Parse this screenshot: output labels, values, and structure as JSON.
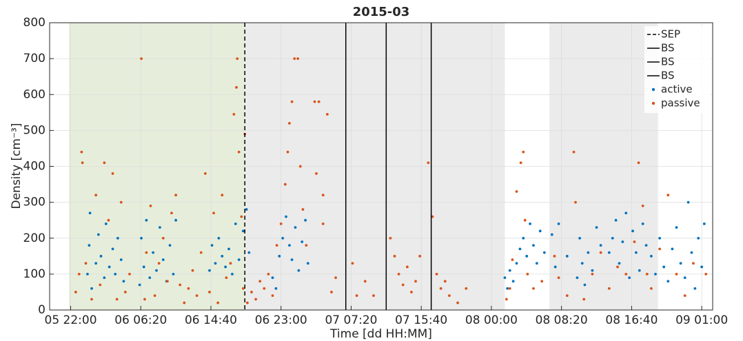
{
  "chart_data": {
    "type": "scatter",
    "title": "2015-03",
    "x_label": "Time [dd HH:MM]",
    "y_label": "Density [cm⁻³]",
    "xlim": [
      19.5,
      98.3
    ],
    "ylim": [
      0,
      800
    ],
    "xticks": [
      {
        "value": 22,
        "label": "05 22:00"
      },
      {
        "value": 30.333,
        "label": "06 06:20"
      },
      {
        "value": 38.667,
        "label": "06 14:40"
      },
      {
        "value": 47,
        "label": "06 23:00"
      },
      {
        "value": 55.333,
        "label": "07 07:20"
      },
      {
        "value": 63.667,
        "label": "07 15:40"
      },
      {
        "value": 72,
        "label": "08 00:00"
      },
      {
        "value": 80.333,
        "label": "08 08:20"
      },
      {
        "value": 88.667,
        "label": "08 16:40"
      },
      {
        "value": 97,
        "label": "09 01:00"
      }
    ],
    "yticks": [
      0,
      100,
      200,
      300,
      400,
      500,
      600,
      700,
      800
    ],
    "grid": true,
    "legend": "upper right",
    "regions": [
      {
        "x": [
          21.8,
          42.7
        ],
        "color": "#e6eedb"
      },
      {
        "x": [
          42.7,
          73.6
        ],
        "color": "#ebebeb"
      },
      {
        "x": [
          78.9,
          91.8
        ],
        "color": "#ebebeb"
      }
    ],
    "vlines": [
      {
        "name": "SEP",
        "x": 42.7,
        "style": "dashed"
      },
      {
        "name": "BS",
        "x": 54.7,
        "style": "solid"
      },
      {
        "name": "BS",
        "x": 59.5,
        "style": "solid"
      },
      {
        "name": "BS",
        "x": 64.85,
        "style": "solid"
      }
    ],
    "series": [
      {
        "name": "active",
        "color": "#0072bd",
        "x": [
          24.0,
          24.2,
          24.3,
          24.5,
          25,
          25.3,
          25.6,
          26,
          26.2,
          26.6,
          27,
          27.3,
          27.6,
          28,
          28.3,
          30.2,
          30.4,
          30.7,
          31,
          31.4,
          31.8,
          32.2,
          32.6,
          33,
          33.4,
          33.8,
          34.2,
          34.5,
          38.5,
          38.8,
          39.2,
          39.6,
          40,
          40.4,
          40.8,
          41.2,
          41.6,
          42,
          42.5,
          42.9,
          43.2,
          46,
          46.4,
          46.8,
          47.2,
          47.6,
          48,
          48.3,
          48.7,
          49.1,
          49.5,
          49.9,
          50.2,
          73.6,
          73.9,
          74.2,
          74.6,
          75,
          75.4,
          75.8,
          76.2,
          76.6,
          77,
          77.4,
          77.8,
          78.3,
          79.2,
          79.6,
          80,
          81,
          82.2,
          82.5,
          82.8,
          83.1,
          83.5,
          84,
          84.5,
          85,
          86,
          86.4,
          86.8,
          87.2,
          87.6,
          88,
          88.4,
          88.8,
          89.2,
          89.6,
          90,
          90.4,
          91,
          91.5,
          92,
          92.5,
          93,
          93.5,
          94,
          94.5,
          95,
          95.4,
          95.8,
          96.2,
          96.6,
          97,
          97.3
        ],
        "values": [
          100,
          180,
          270,
          60,
          130,
          210,
          150,
          90,
          240,
          120,
          170,
          100,
          200,
          140,
          80,
          70,
          200,
          120,
          250,
          90,
          160,
          110,
          230,
          140,
          80,
          180,
          100,
          250,
          110,
          180,
          130,
          200,
          150,
          120,
          170,
          100,
          240,
          140,
          220,
          280,
          160,
          90,
          60,
          150,
          200,
          260,
          180,
          140,
          230,
          110,
          190,
          250,
          130,
          90,
          60,
          110,
          80,
          130,
          170,
          200,
          150,
          240,
          180,
          130,
          220,
          160,
          210,
          120,
          240,
          150,
          90,
          200,
          130,
          70,
          160,
          110,
          230,
          180,
          160,
          200,
          250,
          130,
          190,
          270,
          90,
          220,
          160,
          110,
          240,
          180,
          150,
          100,
          200,
          120,
          80,
          170,
          230,
          130,
          90,
          300,
          160,
          60,
          200,
          120,
          240
        ]
      },
      {
        "name": "passive",
        "color": "#d95319",
        "x": [
          22.6,
          23,
          23.3,
          23.4,
          23.8,
          24.5,
          25,
          25.5,
          26,
          26.5,
          27,
          27.5,
          28,
          28.5,
          29,
          30.4,
          30.8,
          31,
          31.5,
          32,
          32.5,
          33,
          33.5,
          34,
          34.5,
          35,
          35.5,
          36,
          36.5,
          37,
          37.5,
          38,
          38.5,
          39,
          39.5,
          40,
          40.5,
          41,
          41.4,
          41.7,
          41.8,
          42,
          42.3,
          42.5,
          42.7,
          43,
          43.5,
          44,
          44.5,
          45,
          45.5,
          46,
          46.5,
          47,
          47.5,
          47.8,
          48,
          48.3,
          48.6,
          49,
          49.3,
          49.6,
          50,
          51,
          51.5,
          51.2,
          52,
          52.5,
          52,
          53,
          53.5,
          55.5,
          56,
          57,
          58,
          60,
          60.5,
          61,
          61.5,
          62,
          62.5,
          63,
          63.5,
          64.5,
          65,
          65.5,
          66,
          66.5,
          67,
          68,
          69,
          73.8,
          74.2,
          74.5,
          75,
          75.5,
          75.8,
          76,
          76.3,
          77,
          78,
          79.5,
          80,
          81,
          81.8,
          82,
          83,
          84,
          85,
          86,
          87,
          88,
          89,
          89.5,
          90,
          90.5,
          91,
          92,
          93,
          94,
          95,
          96,
          97.5
        ],
        "values": [
          50,
          100,
          440,
          410,
          130,
          30,
          320,
          70,
          410,
          250,
          380,
          30,
          300,
          50,
          100,
          700,
          30,
          160,
          290,
          40,
          130,
          200,
          80,
          270,
          320,
          70,
          20,
          60,
          110,
          40,
          160,
          380,
          50,
          270,
          20,
          320,
          90,
          130,
          545,
          620,
          700,
          440,
          260,
          60,
          490,
          20,
          50,
          30,
          80,
          60,
          100,
          40,
          180,
          240,
          350,
          440,
          520,
          580,
          700,
          700,
          400,
          280,
          180,
          580,
          580,
          380,
          320,
          545,
          240,
          50,
          90,
          130,
          40,
          80,
          40,
          200,
          150,
          100,
          70,
          120,
          50,
          80,
          150,
          410,
          260,
          100,
          60,
          80,
          40,
          20,
          60,
          30,
          60,
          140,
          330,
          410,
          440,
          250,
          100,
          60,
          80,
          150,
          90,
          40,
          440,
          300,
          30,
          100,
          160,
          60,
          120,
          100,
          190,
          410,
          290,
          100,
          60,
          170,
          320,
          100,
          40,
          130,
          100
        ]
      }
    ]
  }
}
